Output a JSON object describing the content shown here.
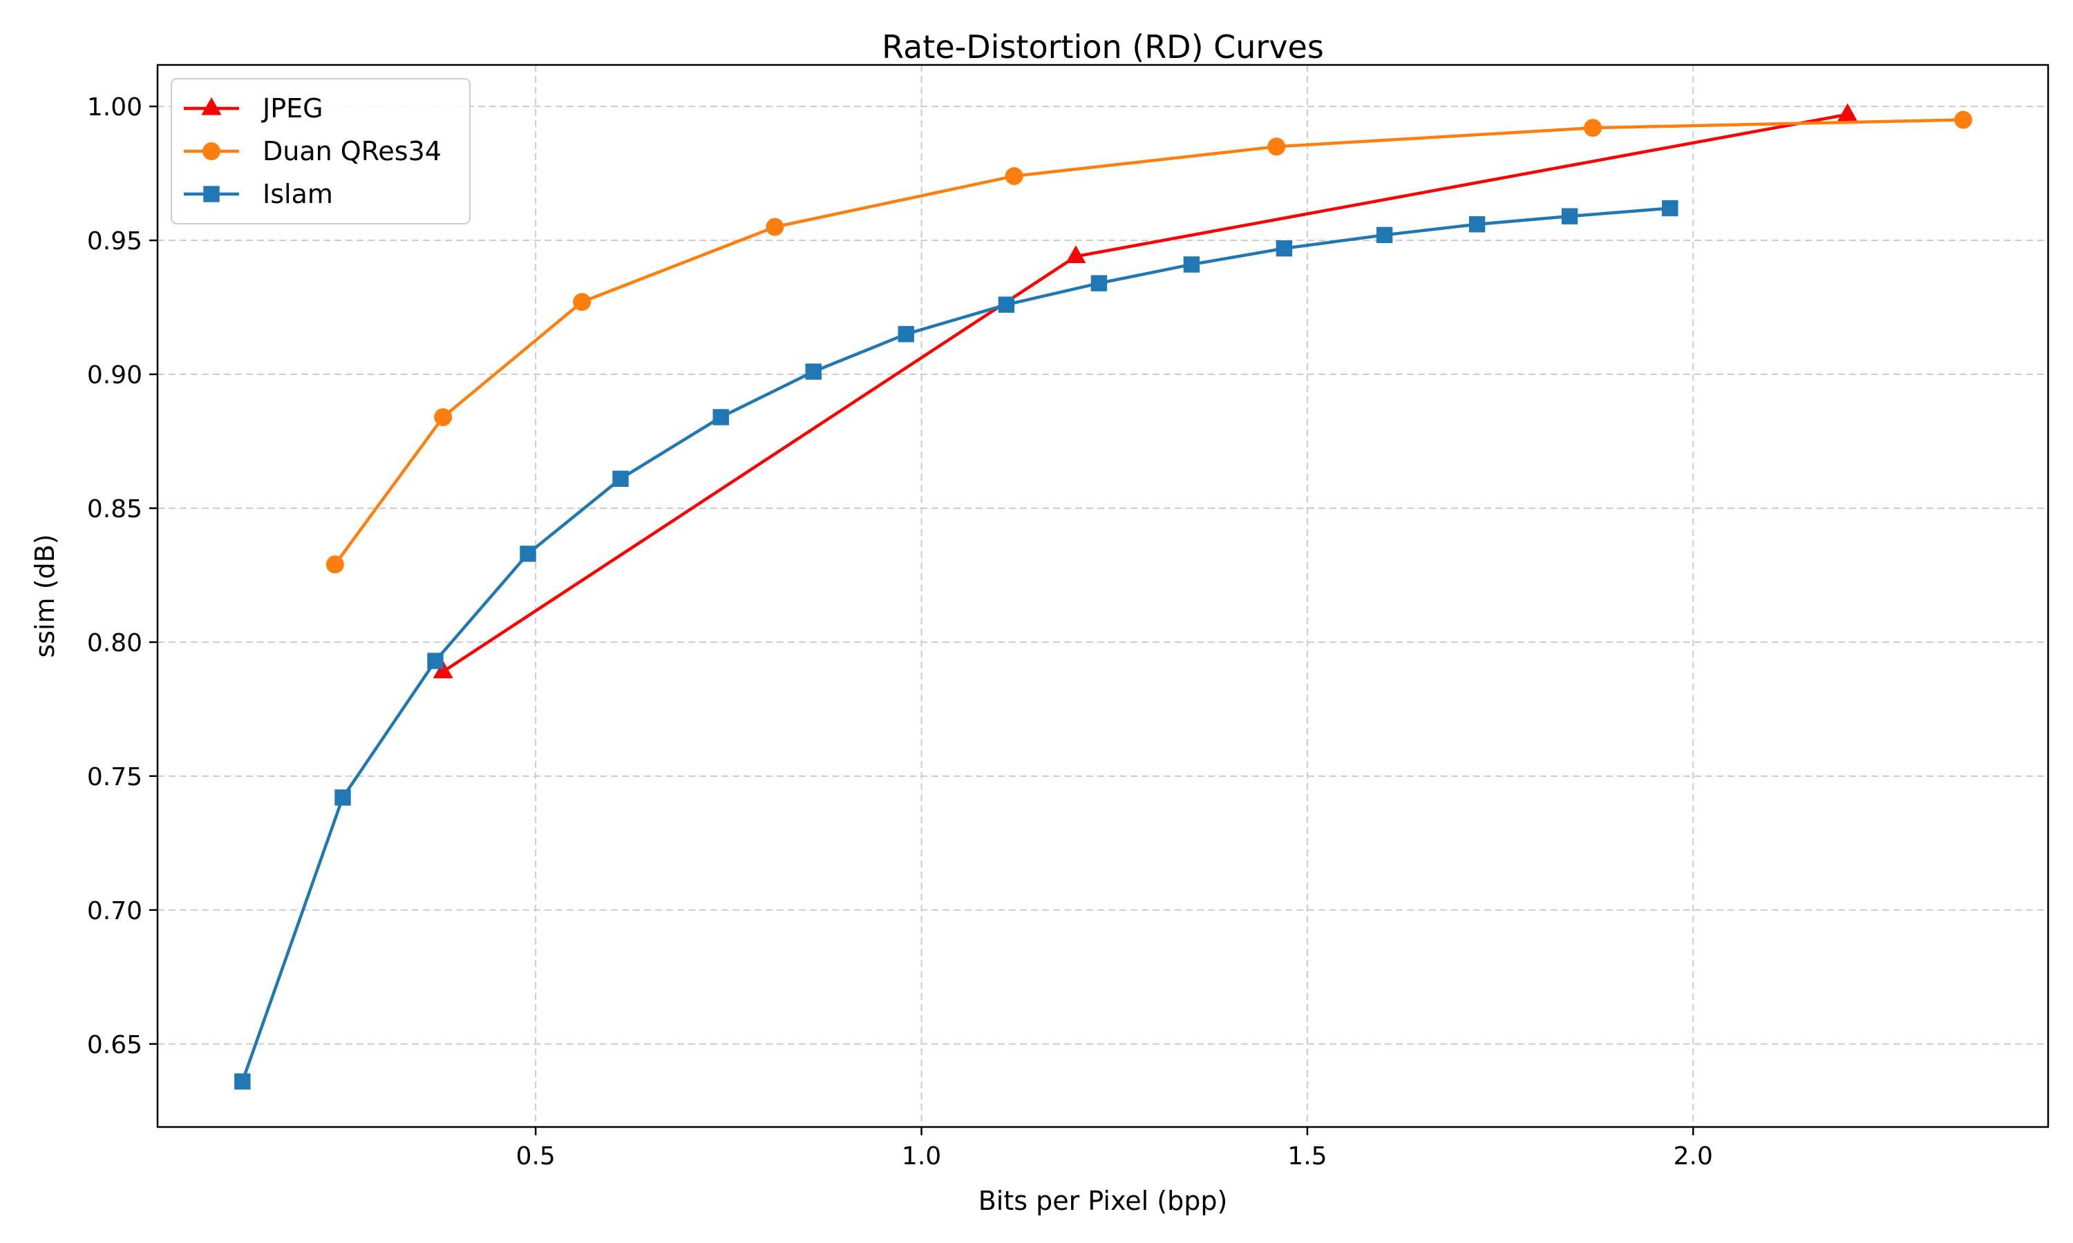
{
  "chart_data": {
    "type": "line",
    "title": "Rate-Distortion (RD) Curves",
    "xlabel": "Bits per Pixel (bpp)",
    "ylabel": "ssim (dB)",
    "xlim": [
      0.01,
      2.46
    ],
    "ylim": [
      0.619,
      1.0155
    ],
    "xticks": [
      0.5,
      1.0,
      1.5,
      2.0
    ],
    "xtick_labels": [
      "0.5",
      "1.0",
      "1.5",
      "2.0"
    ],
    "yticks": [
      0.65,
      0.7,
      0.75,
      0.8,
      0.85,
      0.9,
      0.95,
      1.0
    ],
    "ytick_labels": [
      "0.65",
      "0.70",
      "0.75",
      "0.80",
      "0.85",
      "0.90",
      "0.95",
      "1.00"
    ],
    "grid": true,
    "legend_position": "top-left",
    "series": [
      {
        "name": "JPEG",
        "color": "#ff0000",
        "marker": "triangle",
        "x": [
          0.38,
          1.2,
          2.2
        ],
        "y": [
          0.789,
          0.944,
          0.997
        ]
      },
      {
        "name": "Duan QRes34",
        "color": "#ff7f0e",
        "marker": "circle",
        "x": [
          0.24,
          0.38,
          0.56,
          0.81,
          1.12,
          1.46,
          1.87,
          2.35
        ],
        "y": [
          0.829,
          0.884,
          0.927,
          0.955,
          0.974,
          0.985,
          0.992,
          0.995
        ]
      },
      {
        "name": "Islam",
        "color": "#1f77b4",
        "marker": "square",
        "x": [
          0.12,
          0.25,
          0.37,
          0.49,
          0.61,
          0.74,
          0.86,
          0.98,
          1.11,
          1.23,
          1.35,
          1.47,
          1.6,
          1.72,
          1.84,
          1.97
        ],
        "y": [
          0.636,
          0.742,
          0.793,
          0.833,
          0.861,
          0.884,
          0.901,
          0.915,
          0.926,
          0.934,
          0.941,
          0.947,
          0.952,
          0.956,
          0.959,
          0.962
        ]
      }
    ]
  }
}
